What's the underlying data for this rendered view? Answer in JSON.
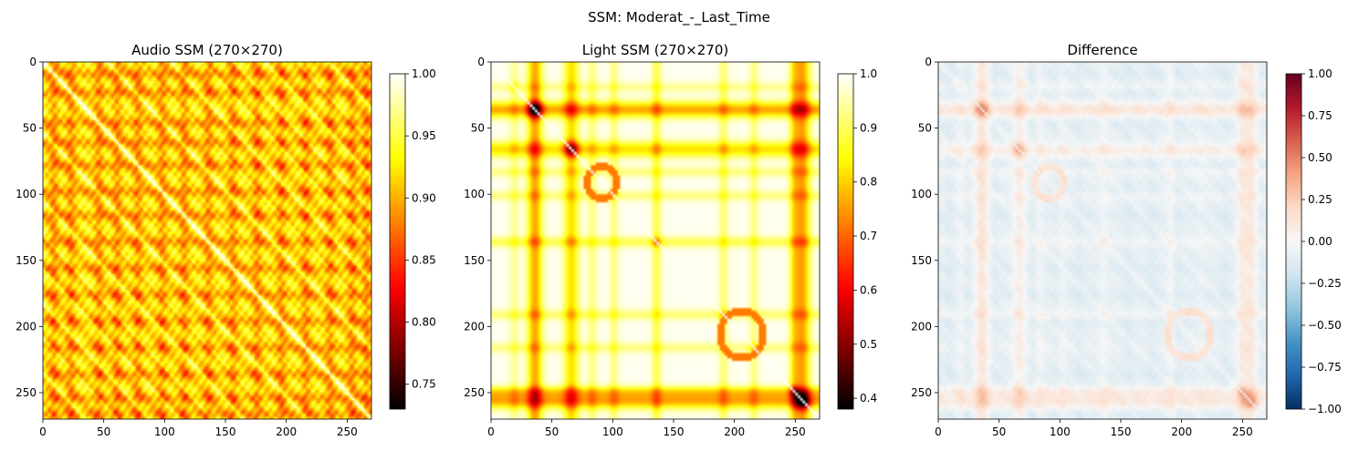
{
  "figure": {
    "suptitle": "SSM: Moderat_-_Last_Time"
  },
  "chart_data": [
    {
      "type": "heatmap",
      "title": "Audio SSM (270×270)",
      "size": 270,
      "colormap": "hot",
      "xlim": [
        0,
        270
      ],
      "ylim": [
        270,
        0
      ],
      "xticks": [
        0,
        50,
        100,
        150,
        200,
        250
      ],
      "yticks": [
        0,
        50,
        100,
        150,
        200,
        250
      ],
      "value_range": [
        0.73,
        1.0
      ],
      "colorbar_ticks": [
        "0.75",
        "0.80",
        "0.85",
        "0.90",
        "0.95",
        "1.00"
      ],
      "colorbar_values": [
        0.75,
        0.8,
        0.85,
        0.9,
        0.95,
        1.0
      ],
      "description": "Self-similarity matrix with bright diagonal and grid-like block pattern; values mostly 0.85–1.0, dark bands near 135, 175, 215, 265"
    },
    {
      "type": "heatmap",
      "title": "Light SSM (270×270)",
      "size": 270,
      "colormap": "hot",
      "xlim": [
        0,
        270
      ],
      "ylim": [
        270,
        0
      ],
      "xticks": [
        0,
        50,
        100,
        150,
        200,
        250
      ],
      "yticks": [
        0,
        50,
        100,
        150,
        200,
        250
      ],
      "value_range": [
        0.38,
        1.0
      ],
      "colorbar_ticks": [
        "0.4",
        "0.5",
        "0.6",
        "0.7",
        "0.8",
        "0.9",
        "1.0"
      ],
      "colorbar_values": [
        0.4,
        0.5,
        0.6,
        0.7,
        0.8,
        0.9,
        1.0
      ],
      "description": "Mostly bright (0.9–1.0) with dark bands near 35, 65, 255; ring structures near (90,90) and (205,205)"
    },
    {
      "type": "heatmap",
      "title": "Difference",
      "size": 270,
      "colormap": "RdBu_r",
      "xlim": [
        0,
        270
      ],
      "ylim": [
        270,
        0
      ],
      "xticks": [
        0,
        50,
        100,
        150,
        200,
        250
      ],
      "yticks": [
        0,
        50,
        100,
        150,
        200,
        250
      ],
      "value_range": [
        -1.0,
        1.0
      ],
      "colorbar_ticks": [
        "1.00",
        "0.75",
        "0.50",
        "0.25",
        "0.00",
        "−0.25",
        "−0.50",
        "−0.75",
        "−1.00"
      ],
      "colorbar_values": [
        1.0,
        0.75,
        0.5,
        0.25,
        0.0,
        -0.25,
        -0.5,
        -0.75,
        -1.0
      ],
      "description": "Mostly near zero (light), positive bands (0.25–0.45) along dark light-SSM bands; slight negatives elsewhere"
    }
  ]
}
